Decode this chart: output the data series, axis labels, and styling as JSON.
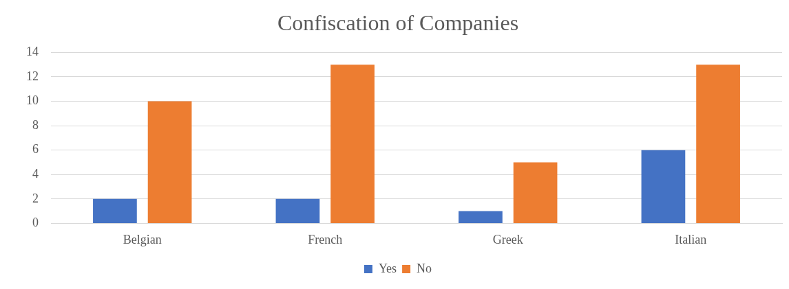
{
  "chart_data": {
    "type": "bar",
    "title": "Confiscation of Companies",
    "categories": [
      "Belgian",
      "French",
      "Greek",
      "Italian"
    ],
    "series": [
      {
        "name": "Yes",
        "color": "#4472c4",
        "values": [
          2,
          2,
          1,
          6
        ]
      },
      {
        "name": "No",
        "color": "#ed7d31",
        "values": [
          10,
          13,
          5,
          13
        ]
      }
    ],
    "ylim": [
      0,
      14
    ],
    "yticks": [
      0,
      2,
      4,
      6,
      8,
      10,
      12,
      14
    ],
    "grid": "y",
    "legend": "bottom"
  }
}
